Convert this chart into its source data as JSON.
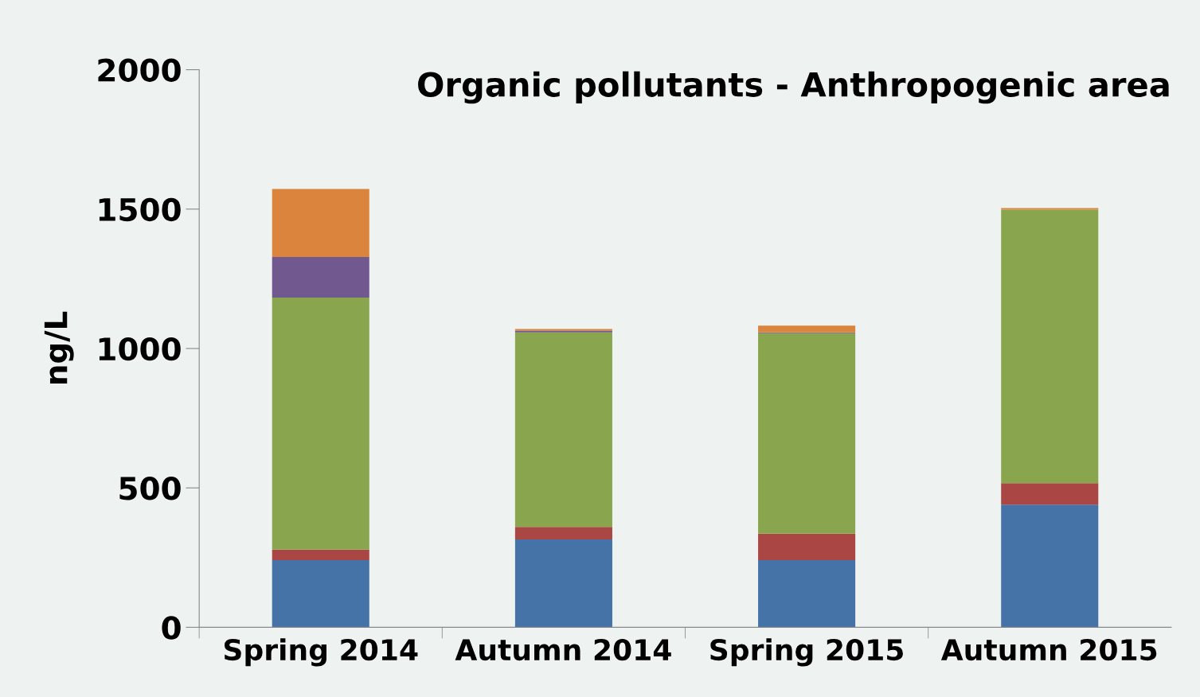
{
  "chart_data": {
    "type": "bar",
    "stacked": true,
    "title": "Organic pollutants - Anthropogenic area",
    "ylabel": "ng/L",
    "categories": [
      "Spring 2014",
      "Autumn 2014",
      "Spring 2015",
      "Autumn 2015"
    ],
    "series": [
      {
        "color": "#4572a7",
        "values": [
          241,
          315,
          241,
          440
        ]
      },
      {
        "color": "#aa4643",
        "values": [
          38,
          45,
          95,
          77
        ]
      },
      {
        "color": "#89a54e",
        "values": [
          904,
          698,
          719,
          981
        ]
      },
      {
        "color": "#71588f",
        "values": [
          145,
          6,
          3,
          null
        ]
      },
      {
        "color": "#db843d",
        "values": [
          244,
          6,
          24,
          6
        ]
      }
    ],
    "ylim": [
      0,
      2000
    ],
    "yticks": [
      0,
      500,
      1000,
      1500,
      2000
    ],
    "grid": false,
    "legend": false
  }
}
